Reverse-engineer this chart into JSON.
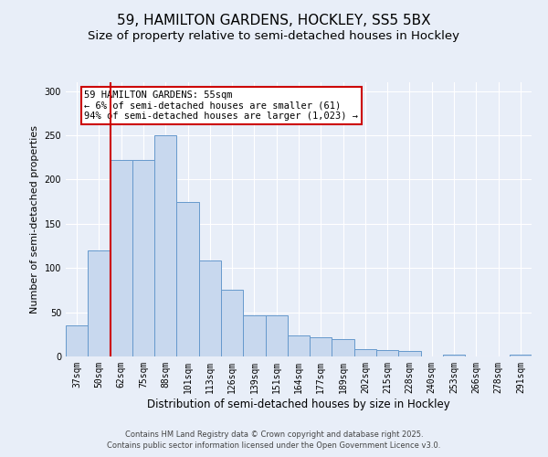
{
  "title_line1": "59, HAMILTON GARDENS, HOCKLEY, SS5 5BX",
  "title_line2": "Size of property relative to semi-detached houses in Hockley",
  "xlabel": "Distribution of semi-detached houses by size in Hockley",
  "ylabel": "Number of semi-detached properties",
  "categories": [
    "37sqm",
    "50sqm",
    "62sqm",
    "75sqm",
    "88sqm",
    "101sqm",
    "113sqm",
    "126sqm",
    "139sqm",
    "151sqm",
    "164sqm",
    "177sqm",
    "189sqm",
    "202sqm",
    "215sqm",
    "228sqm",
    "240sqm",
    "253sqm",
    "266sqm",
    "278sqm",
    "291sqm"
  ],
  "bar_heights": [
    35,
    120,
    222,
    222,
    250,
    175,
    108,
    75,
    47,
    47,
    24,
    22,
    20,
    8,
    7,
    6,
    0,
    2,
    0,
    0,
    2
  ],
  "bar_color": "#c8d8ee",
  "bar_edge_color": "#6699cc",
  "red_line_x": 1.5,
  "annotation_text": "59 HAMILTON GARDENS: 55sqm\n← 6% of semi-detached houses are smaller (61)\n94% of semi-detached houses are larger (1,023) →",
  "annotation_box_color": "#ffffff",
  "annotation_border_color": "#cc0000",
  "ylim": [
    0,
    310
  ],
  "yticks": [
    0,
    50,
    100,
    150,
    200,
    250,
    300
  ],
  "footer_line1": "Contains HM Land Registry data © Crown copyright and database right 2025.",
  "footer_line2": "Contains public sector information licensed under the Open Government Licence v3.0.",
  "bg_color": "#e8eef8",
  "plot_bg_color": "#e8eef8",
  "grid_color": "#ffffff",
  "title_fontsize": 11,
  "subtitle_fontsize": 9.5,
  "xlabel_fontsize": 8.5,
  "ylabel_fontsize": 8,
  "tick_fontsize": 7,
  "footer_fontsize": 6,
  "annot_fontsize": 7.5
}
